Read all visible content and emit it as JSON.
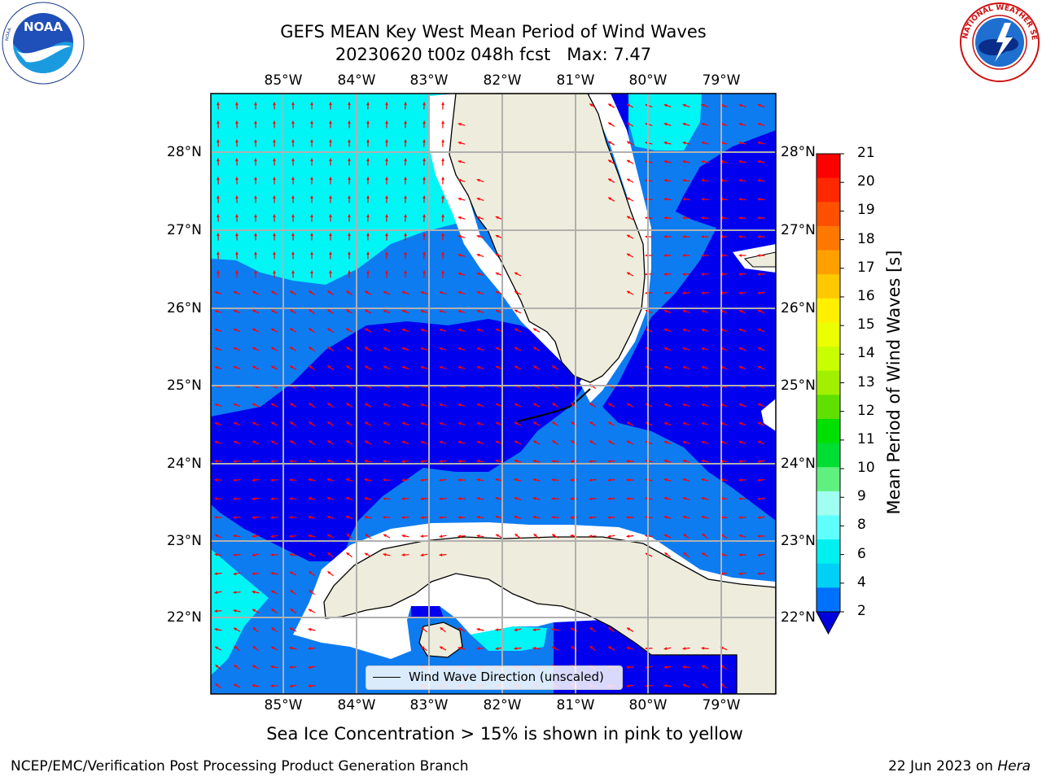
{
  "title": {
    "line1": "GEFS MEAN Key West Mean Period of Wind Waves",
    "line2": "20230620 t00z 048h fcst   Max: 7.47"
  },
  "map": {
    "lon_labels": [
      "85°W",
      "84°W",
      "83°W",
      "82°W",
      "81°W",
      "80°W",
      "79°W"
    ],
    "lat_labels": [
      "28°N",
      "27°N",
      "26°N",
      "25°N",
      "24°N",
      "23°N",
      "22°N"
    ],
    "legend_label": "Wind Wave Direction (unscaled)",
    "colors": {
      "land": "#eeecdc",
      "deep_blue": "#0000ee",
      "mid_blue": "#0d7cf1",
      "cyan": "#00f5f5",
      "arrow": "#ff0000",
      "grid": "#b0b0b0"
    }
  },
  "colorbar": {
    "label": "Mean Period of Wind Waves [s]",
    "ticks": [
      "21",
      "20",
      "19",
      "18",
      "17",
      "16",
      "15",
      "14",
      "13",
      "12",
      "11",
      "10",
      "9",
      "8",
      "6",
      "4",
      "2"
    ],
    "colors": [
      "#ff0000",
      "#ff2800",
      "#ff5000",
      "#ff7800",
      "#ffa000",
      "#ffc800",
      "#fff000",
      "#eaff00",
      "#c8ff00",
      "#a0f000",
      "#60e000",
      "#00e000",
      "#00dd33",
      "#60f080",
      "#a0fff0",
      "#60ffff",
      "#00f0f0",
      "#00d0f5",
      "#0070ff",
      "#0000dd"
    ]
  },
  "footer": {
    "ice_note": "Sea Ice Concentration > 15% is shown in pink to yellow",
    "credit": "NCEP/EMC/Verification Post Processing Product Generation Branch",
    "date": "22 Jun 2023 on ",
    "machine": "Hera"
  },
  "logos": {
    "left": "NOAA",
    "right": "NATIONAL WEATHER SERVICE"
  }
}
